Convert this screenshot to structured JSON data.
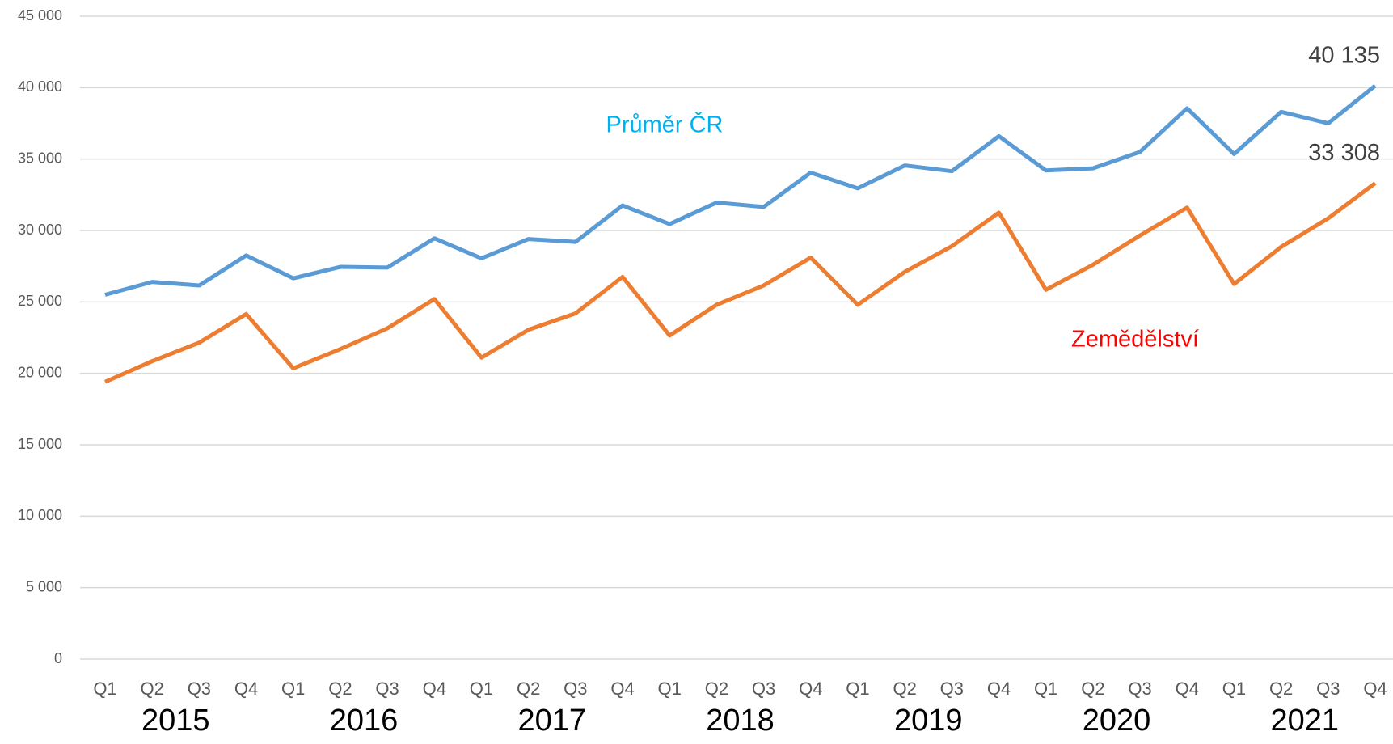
{
  "chart_data": {
    "type": "line",
    "categories": [
      "Q1",
      "Q2",
      "Q3",
      "Q4",
      "Q1",
      "Q2",
      "Q3",
      "Q4",
      "Q1",
      "Q2",
      "Q3",
      "Q4",
      "Q1",
      "Q2",
      "Q3",
      "Q4",
      "Q1",
      "Q2",
      "Q3",
      "Q4",
      "Q1",
      "Q2",
      "Q3",
      "Q4",
      "Q1",
      "Q2",
      "Q3",
      "Q4"
    ],
    "years": [
      "2015",
      "2016",
      "2017",
      "2018",
      "2019",
      "2020",
      "2021"
    ],
    "series": [
      {
        "name": "Průměr ČR",
        "color": "#5b9bd5",
        "label_color": "#00b0f0",
        "values": [
          25500,
          26400,
          26150,
          28250,
          26650,
          27450,
          27400,
          29450,
          28050,
          29400,
          29200,
          31750,
          30450,
          31950,
          31650,
          34050,
          32950,
          34550,
          34150,
          36600,
          34200,
          34350,
          35500,
          38550,
          35350,
          38300,
          37500,
          40135
        ],
        "value_labels": [
          null,
          null,
          null,
          null,
          null,
          null,
          null,
          null,
          null,
          null,
          null,
          null,
          null,
          null,
          null,
          null,
          null,
          null,
          null,
          null,
          null,
          null,
          null,
          null,
          null,
          null,
          null,
          "40 135"
        ]
      },
      {
        "name": "Zemědělství",
        "color": "#ed7d31",
        "label_color": "#ff0000",
        "values": [
          19400,
          20850,
          22150,
          24150,
          20350,
          21700,
          23150,
          25200,
          21100,
          23050,
          24200,
          26750,
          22650,
          24800,
          26150,
          28100,
          24800,
          27100,
          28900,
          31250,
          25850,
          27600,
          29650,
          31600,
          26250,
          28850,
          30850,
          33308
        ],
        "value_labels": [
          null,
          null,
          null,
          null,
          null,
          null,
          null,
          null,
          null,
          null,
          null,
          null,
          null,
          null,
          null,
          null,
          null,
          null,
          null,
          null,
          null,
          null,
          null,
          null,
          null,
          null,
          null,
          "33 308"
        ]
      }
    ],
    "ylim": [
      0,
      45000
    ],
    "yticks": [
      {
        "value": 0,
        "label": "0"
      },
      {
        "value": 5000,
        "label": "5 000"
      },
      {
        "value": 10000,
        "label": "10 000"
      },
      {
        "value": 15000,
        "label": "15 000"
      },
      {
        "value": 20000,
        "label": "20 000"
      },
      {
        "value": 25000,
        "label": "25 000"
      },
      {
        "value": 30000,
        "label": "30 000"
      },
      {
        "value": 35000,
        "label": "35 000"
      },
      {
        "value": 40000,
        "label": "40 000"
      },
      {
        "value": 45000,
        "label": "45 000"
      }
    ],
    "grid": true
  }
}
